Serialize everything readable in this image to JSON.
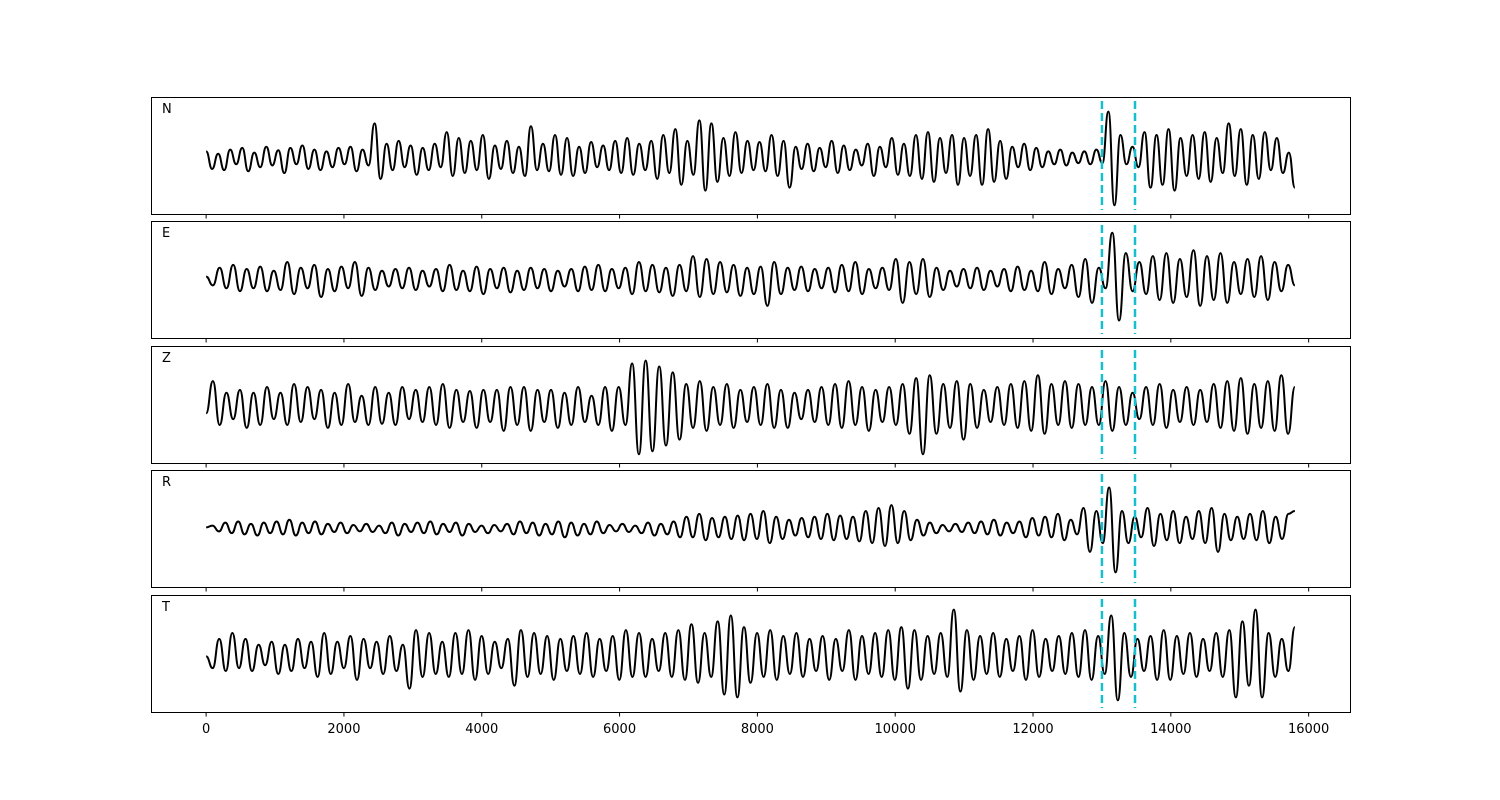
{
  "chart_data": {
    "type": "line",
    "title": "",
    "xlabel": "",
    "ylabel": "",
    "xlim": [
      -800,
      16600
    ],
    "x_ticks": [
      0,
      2000,
      4000,
      6000,
      8000,
      10000,
      12000,
      14000,
      16000
    ],
    "x_tick_labels": [
      "0",
      "2000",
      "4000",
      "6000",
      "8000",
      "10000",
      "12000",
      "14000",
      "16000"
    ],
    "x_range": [
      0,
      15800
    ],
    "grid": false,
    "legend": "none",
    "trace_color": "#000000",
    "marker_color": "#17becf",
    "vertical_markers": [
      13000,
      13480
    ],
    "panels": [
      {
        "label": "N",
        "baseline": -0.05,
        "ylim": [
          -1,
          1
        ],
        "samples": [
          0.12,
          -0.18,
          0.08,
          -0.2,
          0.15,
          -0.1,
          0.18,
          -0.22,
          0.1,
          -0.15,
          0.2,
          -0.12,
          0.14,
          -0.25,
          0.18,
          -0.1,
          0.22,
          -0.18,
          0.15,
          -0.2,
          0.12,
          -0.15,
          0.18,
          -0.1,
          0.2,
          -0.22,
          0.15,
          -0.12,
          0.6,
          -0.35,
          0.25,
          -0.2,
          0.3,
          -0.15,
          0.22,
          -0.28,
          0.18,
          -0.2,
          0.25,
          -0.15,
          0.45,
          -0.3,
          0.35,
          -0.25,
          0.3,
          -0.2,
          0.4,
          -0.35,
          0.22,
          -0.18,
          0.3,
          -0.25,
          0.2,
          -0.3,
          0.55,
          -0.2,
          0.25,
          -0.22,
          0.4,
          -0.28,
          0.35,
          -0.3,
          0.2,
          -0.25,
          0.28,
          -0.15,
          0.22,
          -0.2,
          0.3,
          -0.25,
          0.35,
          -0.28,
          0.25,
          -0.2,
          0.3,
          -0.35,
          0.4,
          -0.25,
          0.5,
          -0.45,
          0.3,
          -0.28,
          0.65,
          -0.55,
          0.6,
          -0.4,
          0.35,
          -0.3,
          0.45,
          -0.25,
          0.3,
          -0.2,
          0.28,
          -0.22,
          0.4,
          -0.3,
          0.3,
          -0.5,
          0.2,
          -0.18,
          0.25,
          -0.22,
          0.18,
          -0.15,
          0.3,
          -0.25,
          0.22,
          -0.2,
          0.15,
          -0.12,
          0.25,
          -0.3,
          0.2,
          -0.15,
          0.35,
          -0.28,
          0.25,
          -0.3,
          0.4,
          -0.35,
          0.45,
          -0.4,
          0.35,
          -0.25,
          0.4,
          -0.45,
          0.35,
          -0.3,
          0.4,
          -0.45,
          0.5,
          -0.4,
          0.3,
          -0.35,
          0.2,
          -0.15,
          0.25,
          -0.2,
          0.18,
          -0.15,
          0.12,
          -0.1,
          0.15,
          -0.12,
          0.1,
          -0.08,
          0.12,
          -0.1,
          0.15,
          -0.08,
          0.8,
          -0.8,
          0.4,
          -0.1,
          0.2,
          -0.15,
          0.45,
          -0.5,
          0.4,
          -0.45,
          0.5,
          -0.55,
          0.35,
          -0.3,
          0.4,
          -0.35,
          0.45,
          -0.4,
          0.35,
          -0.25,
          0.6,
          -0.3,
          0.5,
          -0.45,
          0.4,
          -0.35,
          0.45,
          -0.2,
          0.35,
          -0.25,
          0.1,
          -0.5
        ]
      },
      {
        "label": "E",
        "baseline": 0.0,
        "ylim": [
          -1,
          1
        ],
        "samples": [
          0.05,
          -0.1,
          0.2,
          -0.15,
          0.25,
          -0.2,
          0.18,
          -0.15,
          0.22,
          -0.2,
          0.15,
          -0.18,
          0.3,
          -0.25,
          0.2,
          -0.15,
          0.25,
          -0.3,
          0.18,
          -0.2,
          0.22,
          -0.15,
          0.3,
          -0.28,
          0.2,
          -0.18,
          0.15,
          -0.12,
          0.18,
          -0.15,
          0.2,
          -0.18,
          0.15,
          -0.12,
          0.18,
          -0.2,
          0.25,
          -0.18,
          0.15,
          -0.2,
          0.22,
          -0.25,
          0.18,
          -0.15,
          0.2,
          -0.22,
          0.15,
          -0.18,
          0.2,
          -0.15,
          0.18,
          -0.2,
          0.15,
          -0.12,
          0.18,
          -0.2,
          0.22,
          -0.18,
          0.25,
          -0.2,
          0.18,
          -0.15,
          0.2,
          -0.25,
          0.3,
          -0.2,
          0.25,
          -0.22,
          0.2,
          -0.28,
          0.25,
          -0.2,
          0.4,
          -0.3,
          0.35,
          -0.25,
          0.3,
          -0.22,
          0.25,
          -0.28,
          0.2,
          -0.25,
          0.22,
          -0.45,
          0.3,
          -0.25,
          0.2,
          -0.18,
          0.22,
          -0.2,
          0.18,
          -0.15,
          0.2,
          -0.22,
          0.25,
          -0.2,
          0.3,
          -0.25,
          0.18,
          -0.15,
          0.2,
          -0.18,
          0.35,
          -0.4,
          0.3,
          -0.25,
          0.35,
          -0.3,
          0.2,
          -0.18,
          0.15,
          -0.12,
          0.18,
          -0.15,
          0.2,
          -0.18,
          0.15,
          -0.12,
          0.18,
          -0.2,
          0.22,
          -0.18,
          0.15,
          -0.2,
          0.3,
          -0.25,
          0.18,
          -0.15,
          0.25,
          -0.3,
          0.35,
          -0.4,
          0.2,
          -0.15,
          0.8,
          -0.7,
          0.45,
          -0.2,
          0.3,
          -0.25,
          0.4,
          -0.35,
          0.45,
          -0.4,
          0.35,
          -0.3,
          0.5,
          -0.45,
          0.4,
          -0.35,
          0.45,
          -0.4,
          0.3,
          -0.25,
          0.35,
          -0.3,
          0.4,
          -0.35,
          0.3,
          -0.2,
          0.25,
          -0.1
        ]
      },
      {
        "label": "Z",
        "baseline": -0.05,
        "ylim": [
          -1,
          1
        ],
        "samples": [
          -0.1,
          0.45,
          -0.3,
          0.25,
          -0.2,
          0.3,
          -0.35,
          0.25,
          -0.3,
          0.35,
          -0.2,
          0.25,
          -0.3,
          0.4,
          -0.25,
          0.35,
          -0.2,
          0.3,
          -0.35,
          0.25,
          -0.3,
          0.4,
          -0.25,
          0.2,
          -0.3,
          0.35,
          -0.28,
          0.25,
          -0.3,
          0.35,
          -0.2,
          0.3,
          -0.25,
          0.35,
          -0.3,
          0.4,
          -0.35,
          0.3,
          -0.25,
          0.28,
          -0.35,
          0.3,
          -0.25,
          0.3,
          -0.4,
          0.35,
          -0.3,
          0.35,
          -0.4,
          0.3,
          -0.25,
          0.3,
          -0.35,
          0.25,
          -0.3,
          0.35,
          -0.25,
          0.2,
          -0.3,
          0.35,
          -0.4,
          0.35,
          -0.3,
          0.75,
          -0.8,
          0.8,
          -0.75,
          0.7,
          -0.65,
          0.6,
          -0.55,
          0.4,
          -0.35,
          0.45,
          -0.4,
          0.35,
          -0.3,
          0.4,
          -0.35,
          0.3,
          -0.25,
          0.35,
          -0.3,
          0.4,
          -0.35,
          0.3,
          -0.35,
          0.25,
          -0.2,
          0.3,
          -0.25,
          0.35,
          -0.3,
          0.4,
          -0.35,
          0.45,
          -0.3,
          0.35,
          -0.4,
          0.3,
          -0.25,
          0.35,
          -0.3,
          0.4,
          -0.45,
          0.5,
          -0.8,
          0.55,
          -0.45,
          0.4,
          -0.35,
          0.45,
          -0.55,
          0.4,
          -0.35,
          0.3,
          -0.25,
          0.35,
          -0.3,
          0.4,
          -0.35,
          0.45,
          -0.4,
          0.55,
          -0.45,
          0.4,
          -0.3,
          0.45,
          -0.35,
          0.4,
          -0.3,
          0.35,
          -0.3,
          0.45,
          -0.4,
          0.35,
          -0.3,
          0.25,
          -0.2,
          0.35,
          -0.3,
          0.4,
          -0.35,
          0.3,
          -0.25,
          0.35,
          -0.3,
          0.3,
          -0.25,
          0.4,
          -0.35,
          0.45,
          -0.4,
          0.5,
          -0.45,
          0.4,
          -0.35,
          0.45,
          -0.4,
          0.55,
          -0.45,
          0.35
        ]
      },
      {
        "label": "R",
        "baseline": 0.0,
        "ylim": [
          -1,
          1
        ],
        "samples": [
          0.02,
          0.05,
          -0.05,
          0.1,
          -0.08,
          0.12,
          -0.1,
          0.08,
          -0.12,
          0.1,
          -0.08,
          0.12,
          -0.1,
          0.15,
          -0.12,
          0.1,
          -0.08,
          0.12,
          -0.1,
          0.08,
          -0.06,
          0.1,
          -0.08,
          0.06,
          -0.05,
          0.08,
          -0.06,
          0.05,
          -0.08,
          0.1,
          -0.12,
          0.08,
          -0.06,
          0.1,
          -0.08,
          0.12,
          -0.1,
          0.08,
          -0.06,
          0.1,
          -0.12,
          0.08,
          -0.06,
          0.05,
          -0.08,
          0.06,
          -0.05,
          0.08,
          -0.1,
          0.12,
          -0.08,
          0.1,
          -0.12,
          0.08,
          -0.1,
          0.12,
          -0.15,
          0.1,
          -0.12,
          0.08,
          -0.1,
          0.12,
          -0.08,
          0.06,
          -0.05,
          0.08,
          -0.06,
          0.05,
          -0.08,
          0.1,
          -0.12,
          0.08,
          -0.1,
          0.12,
          -0.15,
          0.2,
          -0.15,
          0.25,
          -0.2,
          0.18,
          -0.15,
          0.2,
          -0.18,
          0.22,
          -0.2,
          0.25,
          -0.18,
          0.3,
          -0.25,
          0.2,
          -0.18,
          0.15,
          -0.12,
          0.18,
          -0.15,
          0.2,
          -0.18,
          0.25,
          -0.2,
          0.22,
          -0.18,
          0.2,
          -0.22,
          0.3,
          -0.25,
          0.35,
          -0.3,
          0.4,
          -0.25,
          0.3,
          -0.2,
          0.15,
          -0.12,
          0.1,
          -0.08,
          0.06,
          -0.05,
          0.08,
          -0.06,
          0.1,
          -0.08,
          0.12,
          -0.1,
          0.15,
          -0.12,
          0.1,
          -0.08,
          0.12,
          -0.15,
          0.18,
          -0.12,
          0.2,
          -0.15,
          0.25,
          -0.2,
          0.15,
          -0.1,
          0.35,
          -0.4,
          0.3,
          -0.25,
          0.7,
          -0.75,
          0.3,
          -0.25,
          0.2,
          -0.15,
          0.35,
          -0.3,
          0.25,
          -0.2,
          0.3,
          -0.25,
          0.2,
          -0.18,
          0.3,
          -0.25,
          0.35,
          -0.4,
          0.25,
          -0.2,
          0.2,
          -0.18,
          0.25,
          -0.2,
          0.3,
          -0.25,
          0.2,
          -0.18,
          0.25,
          0.3
        ]
      },
      {
        "label": "T",
        "baseline": -0.05,
        "ylim": [
          -1,
          1
        ],
        "samples": [
          0.0,
          -0.2,
          0.3,
          -0.25,
          0.4,
          -0.2,
          0.3,
          -0.25,
          0.2,
          -0.15,
          0.25,
          -0.3,
          0.2,
          -0.25,
          0.3,
          -0.2,
          0.25,
          -0.35,
          0.4,
          -0.3,
          0.25,
          -0.2,
          0.35,
          -0.4,
          0.3,
          -0.2,
          0.25,
          -0.3,
          0.35,
          -0.25,
          0.2,
          -0.55,
          0.45,
          -0.35,
          0.4,
          -0.3,
          0.25,
          -0.35,
          0.4,
          -0.3,
          0.45,
          -0.4,
          0.35,
          -0.3,
          0.25,
          -0.2,
          0.3,
          -0.5,
          0.45,
          -0.35,
          0.4,
          -0.3,
          0.35,
          -0.4,
          0.3,
          -0.25,
          0.35,
          -0.3,
          0.4,
          -0.35,
          0.3,
          -0.25,
          0.35,
          -0.4,
          0.45,
          -0.35,
          0.4,
          -0.35,
          0.3,
          -0.25,
          0.4,
          -0.35,
          0.45,
          -0.4,
          0.55,
          -0.45,
          0.4,
          -0.35,
          0.6,
          -0.65,
          0.7,
          -0.7,
          0.5,
          -0.45,
          0.4,
          -0.35,
          0.45,
          -0.4,
          0.35,
          -0.3,
          0.4,
          -0.35,
          0.3,
          -0.25,
          0.35,
          -0.4,
          0.3,
          -0.25,
          0.45,
          -0.4,
          0.35,
          -0.3,
          0.4,
          -0.35,
          0.45,
          -0.4,
          0.5,
          -0.55,
          0.45,
          -0.4,
          0.35,
          -0.3,
          0.4,
          -0.35,
          0.8,
          -0.6,
          0.45,
          -0.4,
          0.35,
          -0.3,
          0.4,
          -0.35,
          0.3,
          -0.25,
          0.35,
          -0.4,
          0.45,
          -0.35,
          0.3,
          -0.25,
          0.35,
          -0.3,
          0.4,
          -0.35,
          0.45,
          -0.4,
          0.35,
          -0.3,
          0.7,
          -0.75,
          0.4,
          -0.35,
          0.3,
          -0.25,
          0.35,
          -0.4,
          0.45,
          -0.4,
          0.35,
          -0.3,
          0.4,
          -0.35,
          0.3,
          -0.25,
          0.4,
          -0.35,
          0.45,
          -0.7,
          0.6,
          -0.5,
          0.8,
          -0.7,
          0.4,
          -0.35,
          0.3,
          -0.25,
          0.5
        ]
      }
    ]
  }
}
